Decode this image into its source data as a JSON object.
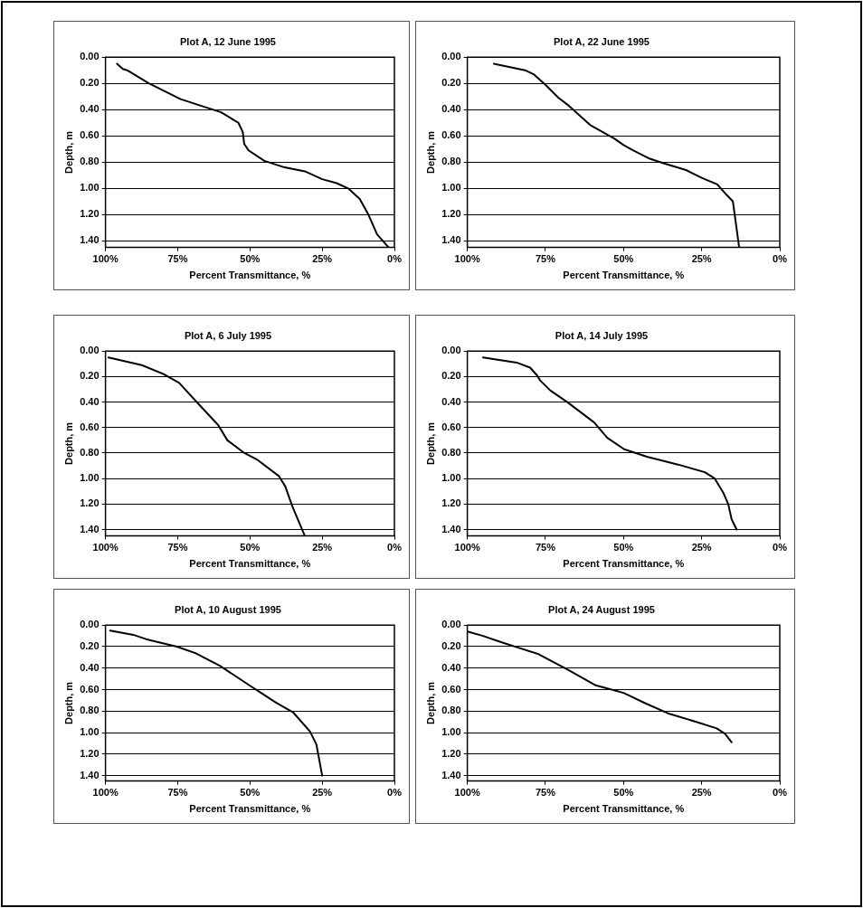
{
  "chart_data": [
    {
      "type": "line",
      "title": "Plot A, 12 June 1995",
      "xlabel": "Percent Transmittance, %",
      "ylabel": "Depth, m",
      "grid": "y",
      "marker": "none",
      "xlim": [
        100,
        0
      ],
      "ylim": [
        1.45,
        0
      ],
      "xticks": [
        {
          "value": 100,
          "label": "100%"
        },
        {
          "value": 75,
          "label": "75%"
        },
        {
          "value": 50,
          "label": "50%"
        },
        {
          "value": 25,
          "label": "25%"
        },
        {
          "value": 0,
          "label": "0%"
        }
      ],
      "yticks": [
        {
          "value": 0,
          "label": "0.00"
        },
        {
          "value": 0.2,
          "label": "0.20"
        },
        {
          "value": 0.4,
          "label": "0.40"
        },
        {
          "value": 0.6,
          "label": "0.60"
        },
        {
          "value": 0.8,
          "label": "0.80"
        },
        {
          "value": 1,
          "label": "1.00"
        },
        {
          "value": 1.2,
          "label": "1.20"
        },
        {
          "value": 1.4,
          "label": "1.40"
        }
      ],
      "series": [
        {
          "color": "#000000",
          "x": [
            96,
            94,
            92.5,
            85,
            74,
            60,
            54,
            52.5,
            52,
            50.5,
            45,
            38,
            31,
            25,
            20,
            16,
            12,
            9,
            6,
            2
          ],
          "values": [
            0.05,
            0.09,
            0.1,
            0.2,
            0.32,
            0.42,
            0.5,
            0.57,
            0.66,
            0.71,
            0.79,
            0.84,
            0.87,
            0.93,
            0.96,
            1,
            1.08,
            1.2,
            1.35,
            1.45
          ]
        }
      ]
    },
    {
      "type": "line",
      "title": "Plot A, 22 June 1995",
      "xlabel": "Percent Transmittance, %",
      "ylabel": "Depth, m",
      "grid": "y",
      "marker": "none",
      "xlim": [
        100,
        0
      ],
      "ylim": [
        1.45,
        0
      ],
      "xticks": [
        {
          "value": 100,
          "label": "100%"
        },
        {
          "value": 75,
          "label": "75%"
        },
        {
          "value": 50,
          "label": "50%"
        },
        {
          "value": 25,
          "label": "25%"
        },
        {
          "value": 0,
          "label": "0%"
        }
      ],
      "yticks": [
        {
          "value": 0,
          "label": "0.00"
        },
        {
          "value": 0.2,
          "label": "0.20"
        },
        {
          "value": 0.4,
          "label": "0.40"
        },
        {
          "value": 0.6,
          "label": "0.60"
        },
        {
          "value": 0.8,
          "label": "0.80"
        },
        {
          "value": 1,
          "label": "1.00"
        },
        {
          "value": 1.2,
          "label": "1.20"
        },
        {
          "value": 1.4,
          "label": "1.40"
        }
      ],
      "series": [
        {
          "color": "#000000",
          "x": [
            91.5,
            81.5,
            78.8,
            75,
            70.8,
            67.5,
            60.5,
            53,
            50,
            47,
            42,
            37,
            30,
            25,
            20,
            17,
            15,
            13
          ],
          "values": [
            0.05,
            0.1,
            0.13,
            0.21,
            0.31,
            0.37,
            0.52,
            0.62,
            0.67,
            0.71,
            0.77,
            0.81,
            0.86,
            0.92,
            0.97,
            1.05,
            1.1,
            1.45
          ]
        }
      ]
    },
    {
      "type": "line",
      "title": "Plot A, 6 July 1995",
      "xlabel": "Percent Transmittance, %",
      "ylabel": "Depth, m",
      "grid": "y",
      "marker": "none",
      "xlim": [
        100,
        0
      ],
      "ylim": [
        1.45,
        0
      ],
      "xticks": [
        {
          "value": 100,
          "label": "100%"
        },
        {
          "value": 75,
          "label": "75%"
        },
        {
          "value": 50,
          "label": "50%"
        },
        {
          "value": 25,
          "label": "25%"
        },
        {
          "value": 0,
          "label": "0%"
        }
      ],
      "yticks": [
        {
          "value": 0,
          "label": "0.00"
        },
        {
          "value": 0.2,
          "label": "0.20"
        },
        {
          "value": 0.4,
          "label": "0.40"
        },
        {
          "value": 0.6,
          "label": "0.60"
        },
        {
          "value": 0.8,
          "label": "0.80"
        },
        {
          "value": 1,
          "label": "1.00"
        },
        {
          "value": 1.2,
          "label": "1.20"
        },
        {
          "value": 1.4,
          "label": "1.40"
        }
      ],
      "series": [
        {
          "color": "#000000",
          "x": [
            99,
            87.4,
            79.9,
            74.5,
            68,
            61,
            57.8,
            51.9,
            47.6,
            40,
            37.8,
            35.3,
            31
          ],
          "values": [
            0.05,
            0.11,
            0.18,
            0.25,
            0.41,
            0.58,
            0.7,
            0.8,
            0.85,
            0.98,
            1.06,
            1.22,
            1.45
          ]
        }
      ]
    },
    {
      "type": "line",
      "title": "Plot A, 14 July 1995",
      "xlabel": "Percent Transmittance, %",
      "ylabel": "Depth, m",
      "grid": "y",
      "marker": "none",
      "xlim": [
        100,
        0
      ],
      "ylim": [
        1.45,
        0
      ],
      "xticks": [
        {
          "value": 100,
          "label": "100%"
        },
        {
          "value": 75,
          "label": "75%"
        },
        {
          "value": 50,
          "label": "50%"
        },
        {
          "value": 25,
          "label": "25%"
        },
        {
          "value": 0,
          "label": "0%"
        }
      ],
      "yticks": [
        {
          "value": 0,
          "label": "0.00"
        },
        {
          "value": 0.2,
          "label": "0.20"
        },
        {
          "value": 0.4,
          "label": "0.40"
        },
        {
          "value": 0.6,
          "label": "0.60"
        },
        {
          "value": 0.8,
          "label": "0.80"
        },
        {
          "value": 1,
          "label": "1.00"
        },
        {
          "value": 1.2,
          "label": "1.20"
        },
        {
          "value": 1.4,
          "label": "1.40"
        }
      ],
      "series": [
        {
          "color": "#000000",
          "x": [
            95,
            84.2,
            79.9,
            77.7,
            76.7,
            73.4,
            68,
            59.4,
            55.2,
            49.8,
            42.3,
            32.6,
            24,
            20.8,
            18.1,
            16.5,
            15.4,
            13.8
          ],
          "values": [
            0.05,
            0.09,
            0.13,
            0.19,
            0.23,
            0.31,
            0.4,
            0.56,
            0.68,
            0.77,
            0.83,
            0.89,
            0.95,
            1,
            1.11,
            1.2,
            1.32,
            1.4
          ]
        }
      ]
    },
    {
      "type": "line",
      "title": "Plot A, 10 August 1995",
      "xlabel": "Percent Transmittance, %",
      "ylabel": "Depth, m",
      "grid": "y",
      "marker": "none",
      "xlim": [
        100,
        0
      ],
      "ylim": [
        1.45,
        0
      ],
      "xticks": [
        {
          "value": 100,
          "label": "100%"
        },
        {
          "value": 75,
          "label": "75%"
        },
        {
          "value": 50,
          "label": "50%"
        },
        {
          "value": 25,
          "label": "25%"
        },
        {
          "value": 0,
          "label": "0%"
        }
      ],
      "yticks": [
        {
          "value": 0,
          "label": "0.00"
        },
        {
          "value": 0.2,
          "label": "0.20"
        },
        {
          "value": 0.4,
          "label": "0.40"
        },
        {
          "value": 0.6,
          "label": "0.60"
        },
        {
          "value": 0.8,
          "label": "0.80"
        },
        {
          "value": 1,
          "label": "1.00"
        },
        {
          "value": 1.2,
          "label": "1.20"
        },
        {
          "value": 1.4,
          "label": "1.40"
        }
      ],
      "series": [
        {
          "color": "#000000",
          "x": [
            98.4,
            90.4,
            86,
            75.3,
            68.9,
            60.3,
            49.6,
            41,
            35.1,
            29.2,
            27,
            25
          ],
          "values": [
            0.05,
            0.09,
            0.13,
            0.2,
            0.26,
            0.38,
            0.57,
            0.72,
            0.81,
            0.99,
            1.11,
            1.4
          ]
        }
      ]
    },
    {
      "type": "line",
      "title": "Plot A, 24 August 1995",
      "xlabel": "Percent Transmittance, %",
      "ylabel": "Depth, m",
      "grid": "y",
      "marker": "none",
      "xlim": [
        100,
        0
      ],
      "ylim": [
        1.45,
        0
      ],
      "xticks": [
        {
          "value": 100,
          "label": "100%"
        },
        {
          "value": 75,
          "label": "75%"
        },
        {
          "value": 50,
          "label": "50%"
        },
        {
          "value": 25,
          "label": "25%"
        },
        {
          "value": 0,
          "label": "0%"
        }
      ],
      "yticks": [
        {
          "value": 0,
          "label": "0.00"
        },
        {
          "value": 0.2,
          "label": "0.20"
        },
        {
          "value": 0.4,
          "label": "0.40"
        },
        {
          "value": 0.6,
          "label": "0.60"
        },
        {
          "value": 0.8,
          "label": "0.80"
        },
        {
          "value": 1,
          "label": "1.00"
        },
        {
          "value": 1.2,
          "label": "1.20"
        },
        {
          "value": 1.4,
          "label": "1.40"
        }
      ],
      "series": [
        {
          "color": "#000000",
          "x": [
            100,
            95,
            89,
            83.7,
            77.2,
            67.5,
            58.9,
            50,
            42.8,
            35.8,
            26.7,
            20.2,
            17.5,
            15.4
          ],
          "values": [
            0.06,
            0.1,
            0.16,
            0.21,
            0.27,
            0.42,
            0.56,
            0.63,
            0.73,
            0.82,
            0.9,
            0.96,
            1.01,
            1.09
          ]
        }
      ]
    }
  ]
}
